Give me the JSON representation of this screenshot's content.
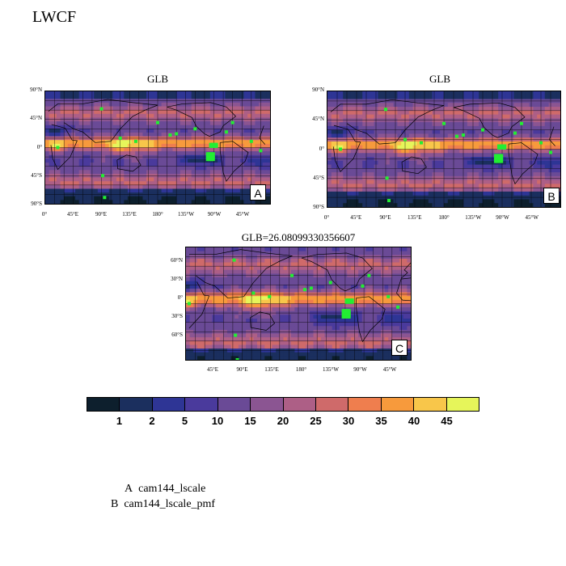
{
  "figure": {
    "title": "LWCF",
    "legend": [
      {
        "key": "A",
        "name": "cam144_lscale"
      },
      {
        "key": "B",
        "name": "cam144_lscale_pmf"
      }
    ]
  },
  "colors": {
    "palette": [
      "#0d1f2d",
      "#1b2f5e",
      "#2e3595",
      "#4a3a9c",
      "#6a4a96",
      "#8b5592",
      "#ad5f86",
      "#cf6a6a",
      "#ef7e4e",
      "#f79a3c",
      "#f8c64a",
      "#e6f55a"
    ],
    "marker": "#22ee33",
    "coast": "#000000"
  },
  "chart_data": [
    {
      "type": "heatmap",
      "panel": "A",
      "title": "GLB",
      "variable": "LWCF",
      "y_ticks": [
        "90°N",
        "45°N",
        "0°",
        "45°S",
        "90°S"
      ],
      "x_ticks": [
        "0°",
        "45°E",
        "90°E",
        "135°E",
        "180°",
        "135°W",
        "90°W",
        "45°W"
      ]
    },
    {
      "type": "heatmap",
      "panel": "B",
      "title": "GLB",
      "variable": "LWCF",
      "y_ticks": [
        "90°N",
        "45°N",
        "0°",
        "45°S",
        "90°S"
      ],
      "x_ticks": [
        "0°",
        "45°E",
        "90°E",
        "135°E",
        "180°",
        "135°W",
        "90°W",
        "45°W"
      ]
    },
    {
      "type": "heatmap",
      "panel": "C",
      "title": "GLB=26.08099330356607",
      "variable": "LWCF",
      "y_ticks": [
        "60°N",
        "30°N",
        "0°",
        "30°S",
        "60°S"
      ],
      "x_ticks": [
        "45°E",
        "90°E",
        "135°E",
        "180°",
        "135°W",
        "90°W",
        "45°W"
      ]
    }
  ],
  "colorbar": {
    "labels": [
      "1",
      "2",
      "5",
      "10",
      "15",
      "20",
      "25",
      "30",
      "35",
      "40",
      "45"
    ]
  }
}
